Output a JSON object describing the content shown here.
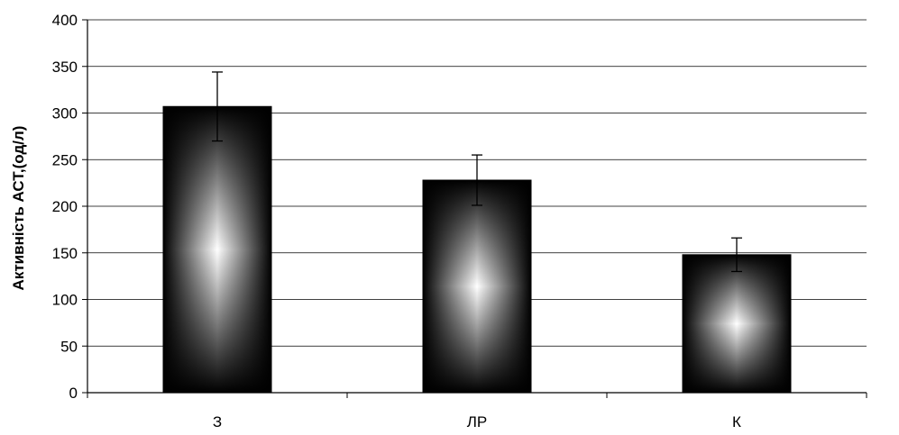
{
  "chart_data": {
    "type": "bar",
    "title": "",
    "xlabel": "",
    "ylabel": "Активність АСТ,(од/л)",
    "categories": [
      "З",
      "ЛР",
      "К"
    ],
    "values": [
      307,
      228,
      148
    ],
    "error": [
      37,
      27,
      18
    ],
    "ylim": [
      0,
      400
    ],
    "yticks": [
      0,
      50,
      100,
      150,
      200,
      250,
      300,
      350,
      400
    ],
    "ytick_labels": [
      "0",
      "50",
      "100",
      "150",
      "200",
      "250",
      "300",
      "350",
      "400"
    ],
    "grid": true,
    "legend": "none",
    "colors": {
      "bar_dark": "#000000",
      "bar_light": "#ffffff",
      "grid": "#000000",
      "axis": "#000000"
    }
  }
}
